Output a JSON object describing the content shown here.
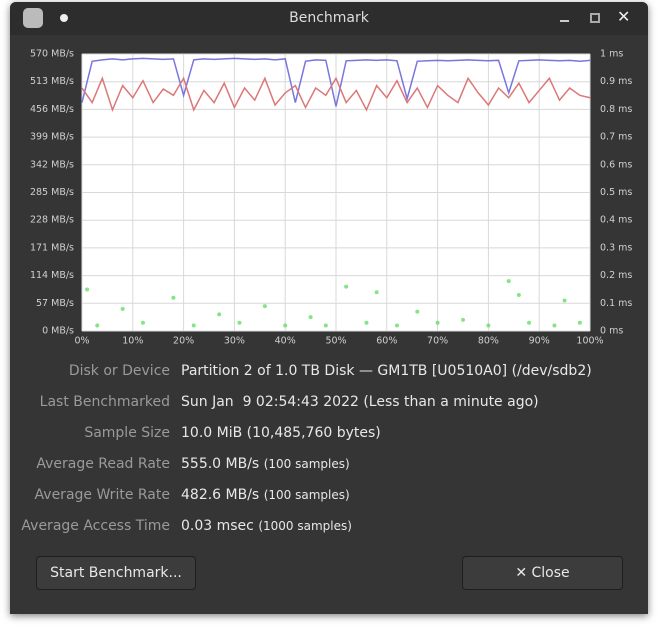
{
  "window": {
    "title": "Benchmark"
  },
  "chart_data": {
    "type": "line",
    "x": [
      0,
      2,
      4,
      6,
      8,
      10,
      12,
      14,
      16,
      18,
      20,
      22,
      24,
      26,
      28,
      30,
      32,
      34,
      36,
      38,
      40,
      42,
      44,
      46,
      48,
      50,
      52,
      54,
      56,
      58,
      60,
      62,
      64,
      66,
      68,
      70,
      72,
      74,
      76,
      78,
      80,
      82,
      84,
      86,
      88,
      90,
      92,
      94,
      96,
      98,
      100
    ],
    "xlim": [
      0,
      100
    ],
    "xticks": [
      {
        "value": 0,
        "label": "0%"
      },
      {
        "value": 10,
        "label": "10%"
      },
      {
        "value": 20,
        "label": "20%"
      },
      {
        "value": 30,
        "label": "30%"
      },
      {
        "value": 40,
        "label": "40%"
      },
      {
        "value": 50,
        "label": "50%"
      },
      {
        "value": 60,
        "label": "60%"
      },
      {
        "value": 70,
        "label": "70%"
      },
      {
        "value": 80,
        "label": "80%"
      },
      {
        "value": 90,
        "label": "90%"
      },
      {
        "value": 100,
        "label": "100%"
      }
    ],
    "ylim": [
      0,
      570
    ],
    "yticks": [
      {
        "value": 0,
        "label": "0 MB/s"
      },
      {
        "value": 57,
        "label": "57 MB/s"
      },
      {
        "value": 114,
        "label": "114 MB/s"
      },
      {
        "value": 171,
        "label": "171 MB/s"
      },
      {
        "value": 228,
        "label": "228 MB/s"
      },
      {
        "value": 285,
        "label": "285 MB/s"
      },
      {
        "value": 342,
        "label": "342 MB/s"
      },
      {
        "value": 399,
        "label": "399 MB/s"
      },
      {
        "value": 456,
        "label": "456 MB/s"
      },
      {
        "value": 513,
        "label": "513 MB/s"
      },
      {
        "value": 570,
        "label": "570 MB/s"
      }
    ],
    "y2lim": [
      0,
      1
    ],
    "y2ticks": [
      {
        "value": 0,
        "label": "0 ms"
      },
      {
        "value": 0.1,
        "label": "0.1 ms"
      },
      {
        "value": 0.2,
        "label": "0.2 ms"
      },
      {
        "value": 0.3,
        "label": "0.3 ms"
      },
      {
        "value": 0.4,
        "label": "0.4 ms"
      },
      {
        "value": 0.5,
        "label": "0.5 ms"
      },
      {
        "value": 0.6,
        "label": "0.6 ms"
      },
      {
        "value": 0.7,
        "label": "0.7 ms"
      },
      {
        "value": 0.8,
        "label": "0.8 ms"
      },
      {
        "value": 0.9,
        "label": "0.9 ms"
      },
      {
        "value": 1,
        "label": "1 ms"
      }
    ],
    "grid": true,
    "series": [
      {
        "color": "#7777dd",
        "values": [
          470,
          555,
          558,
          560,
          558,
          560,
          561,
          560,
          559,
          560,
          485,
          558,
          560,
          559,
          560,
          561,
          560,
          559,
          560,
          558,
          560,
          470,
          555,
          558,
          557,
          462,
          556,
          557,
          558,
          557,
          558,
          556,
          478,
          555,
          556,
          557,
          556,
          557,
          558,
          557,
          556,
          557,
          490,
          556,
          557,
          558,
          557,
          556,
          557,
          555,
          557
        ]
      },
      {
        "color": "#dd7777",
        "values": [
          500,
          470,
          520,
          455,
          505,
          480,
          515,
          470,
          498,
          485,
          520,
          455,
          495,
          470,
          510,
          460,
          500,
          475,
          520,
          465,
          490,
          505,
          460,
          500,
          485,
          520,
          470,
          495,
          455,
          505,
          480,
          515,
          470,
          500,
          460,
          505,
          485,
          470,
          520,
          490,
          465,
          500,
          480,
          510,
          470,
          495,
          520,
          475,
          500,
          485,
          480
        ]
      },
      {
        "type": "scatter",
        "axis": "y2",
        "color": "#66dd66",
        "x": [
          1,
          3,
          8,
          12,
          18,
          22,
          27,
          31,
          36,
          40,
          45,
          48,
          52,
          56,
          58,
          62,
          66,
          70,
          75,
          80,
          84,
          86,
          88,
          93,
          95,
          98
        ],
        "values": [
          0.15,
          0.02,
          0.08,
          0.03,
          0.12,
          0.02,
          0.06,
          0.03,
          0.09,
          0.02,
          0.05,
          0.02,
          0.16,
          0.03,
          0.14,
          0.02,
          0.07,
          0.03,
          0.04,
          0.02,
          0.18,
          0.13,
          0.03,
          0.02,
          0.11,
          0.03
        ]
      }
    ]
  },
  "details": [
    {
      "label": "Disk or Device",
      "value": "Partition 2 of 1.0 TB Disk — GM1TB [U0510A0] (/dev/sdb2)"
    },
    {
      "label": "Last Benchmarked",
      "value": "Sun Jan  9 02:54:43 2022 (Less than a minute ago)"
    },
    {
      "label": "Sample Size",
      "value": "10.0 MiB (10,485,760 bytes)"
    },
    {
      "label": "Average Read Rate",
      "value": "555.0 MB/s",
      "note": "(100 samples)"
    },
    {
      "label": "Average Write Rate",
      "value": "482.6 MB/s",
      "note": "(100 samples)"
    },
    {
      "label": "Average Access Time",
      "value": "0.03 msec",
      "note": "(1000 samples)"
    }
  ],
  "buttons": {
    "start": "Start Benchmark...",
    "close": "Close"
  }
}
